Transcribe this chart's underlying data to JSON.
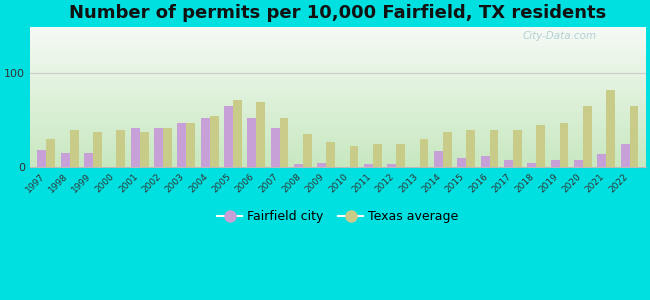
{
  "title": "Number of permits per 10,000 Fairfield, TX residents",
  "years": [
    1997,
    1998,
    1999,
    2000,
    2001,
    2002,
    2003,
    2004,
    2005,
    2006,
    2007,
    2008,
    2009,
    2010,
    2011,
    2012,
    2013,
    2014,
    2015,
    2016,
    2017,
    2018,
    2019,
    2020,
    2021,
    2022
  ],
  "fairfield": [
    18,
    15,
    15,
    0,
    42,
    42,
    47,
    52,
    65,
    52,
    42,
    3,
    4,
    0,
    3,
    3,
    0,
    17,
    10,
    12,
    8,
    4,
    8,
    8,
    14,
    25
  ],
  "texas": [
    30,
    40,
    38,
    40,
    37,
    42,
    47,
    55,
    72,
    70,
    52,
    35,
    27,
    23,
    25,
    25,
    30,
    37,
    40,
    40,
    40,
    45,
    47,
    65,
    82,
    65
  ],
  "fairfield_color": "#c8a0d8",
  "texas_color": "#c8cc88",
  "background_outer": "#00e0e0",
  "ylim": [
    0,
    150
  ],
  "yticks": [
    0,
    100
  ],
  "title_fontsize": 13,
  "legend_fairfield": "Fairfield city",
  "legend_texas": "Texas average",
  "watermark": "City-Data.com",
  "bar_width": 0.38,
  "grad_top": "#f5faf5",
  "grad_bottom": "#c8e8c0"
}
